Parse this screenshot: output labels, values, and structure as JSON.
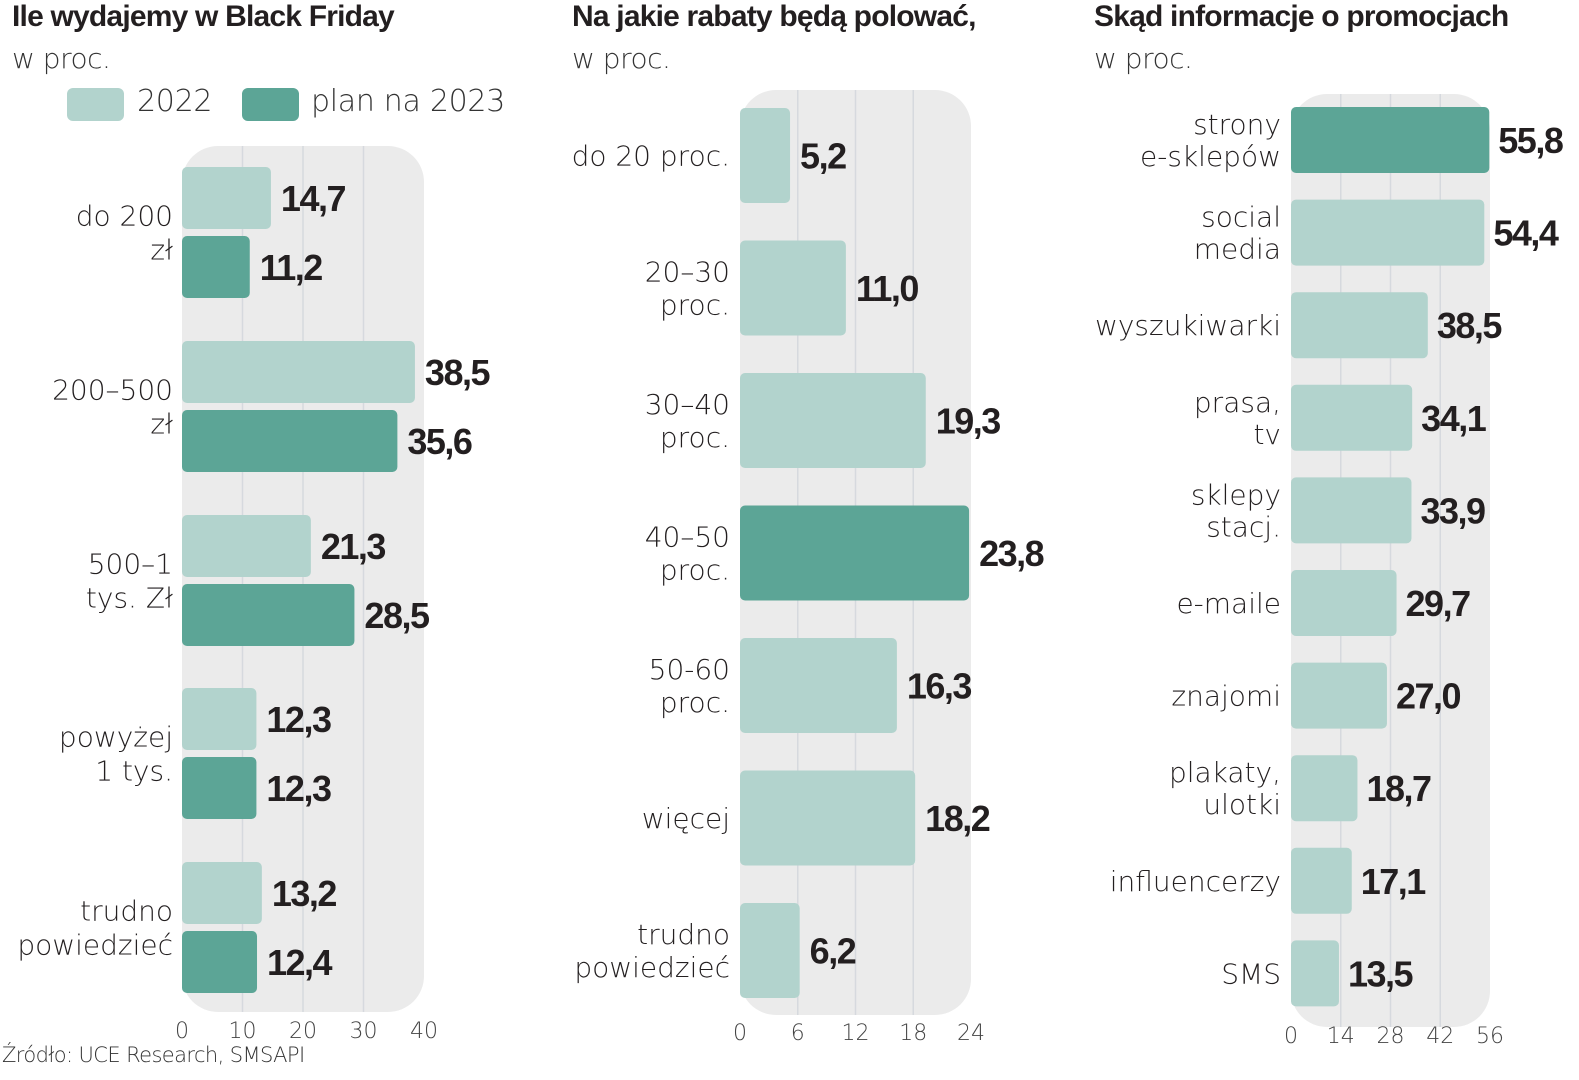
{
  "source": "Źródło: UCE Research, SMSAPI",
  "colors": {
    "light": "#b2d3cd",
    "dark": "#5ca596",
    "panel_bg": "#ebebeb",
    "grid": "#d6d9de",
    "text": "#231f20"
  },
  "chart_data": [
    {
      "type": "bar",
      "orientation": "horizontal",
      "title": "Ile wydajemy w Black Friday",
      "subtitle": "w proc.",
      "legend": [
        {
          "name": "2022",
          "color": "#b2d3cd"
        },
        {
          "name": "plan na 2023",
          "color": "#5ca596"
        }
      ],
      "legend_position": "top",
      "categories": [
        [
          "do 200",
          "zł"
        ],
        [
          "200–500",
          "zł"
        ],
        [
          "500–1",
          "tys. Zł"
        ],
        [
          "powyżej",
          "1 tys."
        ],
        [
          "trudno",
          "powiedzieć"
        ]
      ],
      "series": [
        {
          "name": "2022",
          "values": [
            14.7,
            38.5,
            21.3,
            12.3,
            13.2
          ],
          "labels": [
            "14,7",
            "38,5",
            "21,3",
            "12,3",
            "13,2"
          ],
          "color": "#b2d3cd"
        },
        {
          "name": "plan na 2023",
          "values": [
            11.2,
            35.6,
            28.5,
            12.3,
            12.4
          ],
          "labels": [
            "11,2",
            "35,6",
            "28,5",
            "12,3",
            "12,4"
          ],
          "color": "#5ca596"
        }
      ],
      "xlim": [
        0,
        40
      ],
      "xticks": [
        "0",
        "10",
        "20",
        "30",
        "40"
      ],
      "grid": true
    },
    {
      "type": "bar",
      "orientation": "horizontal",
      "title": "Na jakie rabaty będą polować,",
      "subtitle": "w proc.",
      "categories": [
        [
          "do 20 proc."
        ],
        [
          "20–30",
          "proc."
        ],
        [
          "30–40",
          "proc."
        ],
        [
          "40–50",
          "proc."
        ],
        [
          "50-60",
          "proc."
        ],
        [
          "więcej"
        ],
        [
          "trudno",
          "powiedzieć"
        ]
      ],
      "values": [
        5.2,
        11.0,
        19.3,
        23.8,
        16.3,
        18.2,
        6.2
      ],
      "labels": [
        "5,2",
        "11,0",
        "19,3",
        "23,8",
        "16,3",
        "18,2",
        "6,2"
      ],
      "highlight_index": 3,
      "xlim": [
        0,
        24
      ],
      "xticks": [
        "0",
        "6",
        "12",
        "18",
        "24"
      ],
      "grid": true
    },
    {
      "type": "bar",
      "orientation": "horizontal",
      "title": "Skąd informacje o promocjach",
      "subtitle": "w proc.",
      "categories": [
        [
          "strony",
          "e-sklepów"
        ],
        [
          "social",
          "media"
        ],
        [
          "wyszukiwarki"
        ],
        [
          "prasa,",
          "tv"
        ],
        [
          "sklepy",
          "stacj."
        ],
        [
          "e-maile"
        ],
        [
          "znajomi"
        ],
        [
          "plakaty,",
          "ulotki"
        ],
        [
          "influencerzy"
        ],
        [
          "SMS"
        ]
      ],
      "values": [
        55.8,
        54.4,
        38.5,
        34.1,
        33.9,
        29.7,
        27.0,
        18.7,
        17.1,
        13.5
      ],
      "labels": [
        "55,8",
        "54,4",
        "38,5",
        "34,1",
        "33,9",
        "29,7",
        "27,0",
        "18,7",
        "17,1",
        "13,5"
      ],
      "highlight_index": 0,
      "xlim": [
        0,
        56
      ],
      "xticks": [
        "0",
        "14",
        "28",
        "42",
        "56"
      ],
      "grid": true
    }
  ]
}
